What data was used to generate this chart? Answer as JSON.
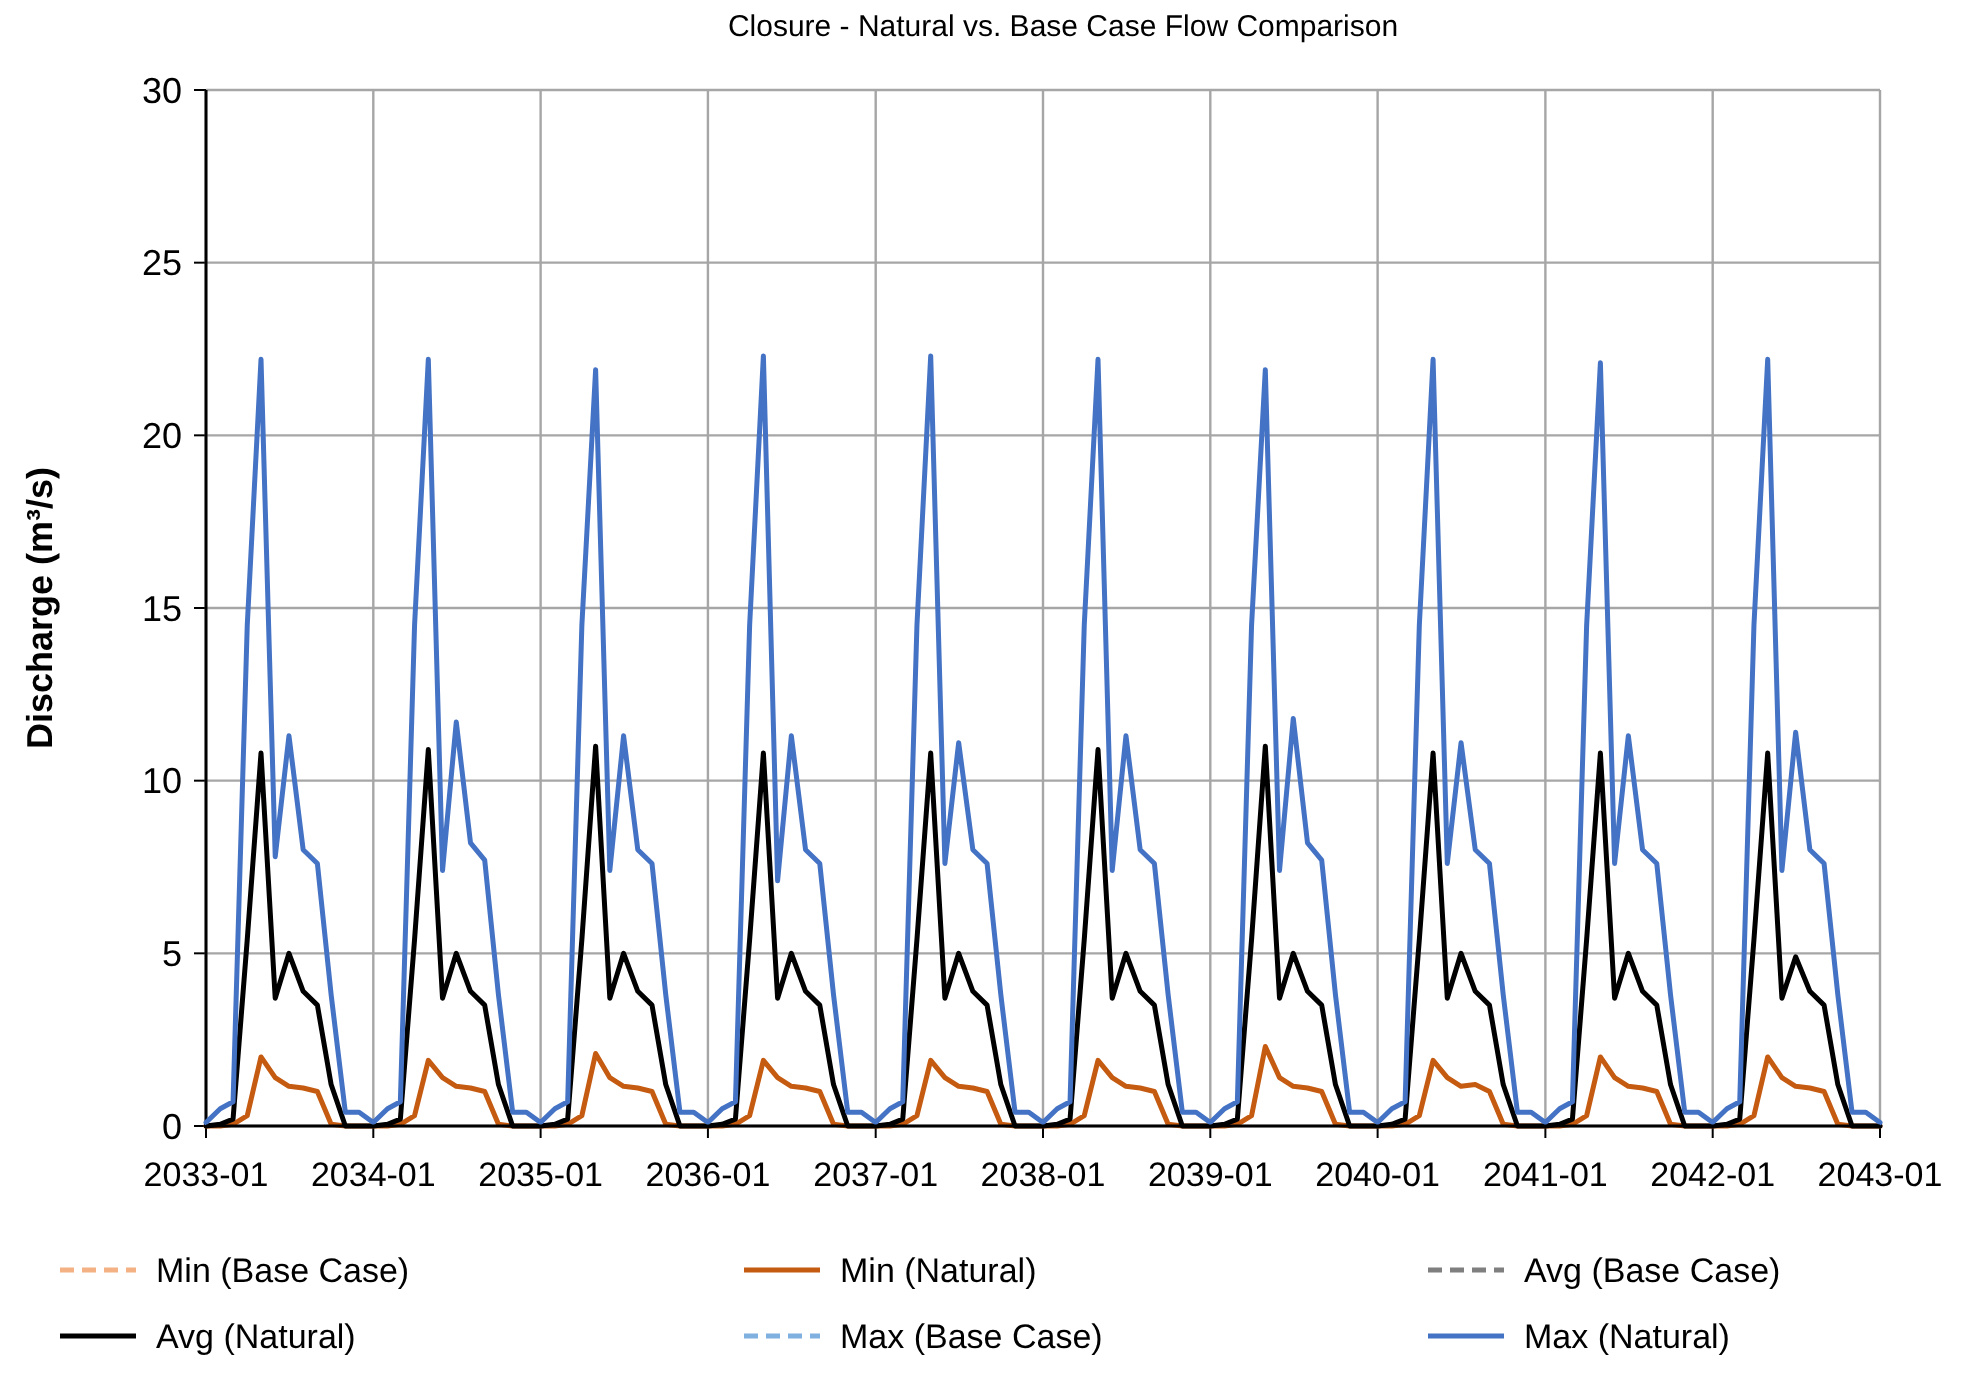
{
  "chart_data": {
    "type": "line",
    "title": "Closure - Natural vs. Base Case Flow Comparison",
    "ylabel": "Discharge (m³/s)",
    "x": [
      "2033-01",
      "2033-02",
      "2033-03",
      "2033-04",
      "2033-05",
      "2033-06",
      "2033-07",
      "2033-08",
      "2033-09",
      "2033-10",
      "2033-11",
      "2033-12",
      "2034-01",
      "2034-02",
      "2034-03",
      "2034-04",
      "2034-05",
      "2034-06",
      "2034-07",
      "2034-08",
      "2034-09",
      "2034-10",
      "2034-11",
      "2034-12",
      "2035-01",
      "2035-02",
      "2035-03",
      "2035-04",
      "2035-05",
      "2035-06",
      "2035-07",
      "2035-08",
      "2035-09",
      "2035-10",
      "2035-11",
      "2035-12",
      "2036-01",
      "2036-02",
      "2036-03",
      "2036-04",
      "2036-05",
      "2036-06",
      "2036-07",
      "2036-08",
      "2036-09",
      "2036-10",
      "2036-11",
      "2036-12",
      "2037-01",
      "2037-02",
      "2037-03",
      "2037-04",
      "2037-05",
      "2037-06",
      "2037-07",
      "2037-08",
      "2037-09",
      "2037-10",
      "2037-11",
      "2037-12",
      "2038-01",
      "2038-02",
      "2038-03",
      "2038-04",
      "2038-05",
      "2038-06",
      "2038-07",
      "2038-08",
      "2038-09",
      "2038-10",
      "2038-11",
      "2038-12",
      "2039-01",
      "2039-02",
      "2039-03",
      "2039-04",
      "2039-05",
      "2039-06",
      "2039-07",
      "2039-08",
      "2039-09",
      "2039-10",
      "2039-11",
      "2039-12",
      "2040-01",
      "2040-02",
      "2040-03",
      "2040-04",
      "2040-05",
      "2040-06",
      "2040-07",
      "2040-08",
      "2040-09",
      "2040-10",
      "2040-11",
      "2040-12",
      "2041-01",
      "2041-02",
      "2041-03",
      "2041-04",
      "2041-05",
      "2041-06",
      "2041-07",
      "2041-08",
      "2041-09",
      "2041-10",
      "2041-11",
      "2041-12",
      "2042-01",
      "2042-02",
      "2042-03",
      "2042-04",
      "2042-05",
      "2042-06",
      "2042-07",
      "2042-08",
      "2042-09",
      "2042-10",
      "2042-11",
      "2042-12",
      "2043-01"
    ],
    "xlim": [
      "2033-01",
      "2043-01"
    ],
    "xticks": [
      "2033-01",
      "2034-01",
      "2035-01",
      "2036-01",
      "2037-01",
      "2038-01",
      "2039-01",
      "2040-01",
      "2041-01",
      "2042-01",
      "2043-01"
    ],
    "ylim": [
      0,
      30
    ],
    "yticks": [
      0,
      5,
      10,
      15,
      20,
      25,
      30
    ],
    "grid": true,
    "legend": "bottom",
    "marker": "none",
    "series": [
      {
        "name": "Min (Base Case)",
        "color": "#f4b183",
        "line_style": "dashed",
        "values": [
          null,
          null,
          null,
          null,
          null,
          null,
          null,
          null,
          null,
          null,
          null,
          null,
          null,
          null,
          null,
          null,
          null,
          null,
          null,
          null,
          null,
          null,
          null,
          null,
          null,
          null,
          null,
          null,
          null,
          null,
          null,
          null,
          null,
          null,
          null,
          null,
          null,
          null,
          null,
          null,
          null,
          null,
          null,
          null,
          null,
          null,
          null,
          null,
          null,
          null,
          null,
          null,
          null,
          null,
          null,
          null,
          null,
          null,
          null,
          null,
          null,
          null,
          null,
          null,
          null,
          null,
          null,
          null,
          null,
          null,
          null,
          null,
          null,
          null,
          null,
          null,
          null,
          null,
          null,
          null,
          null,
          null,
          null,
          null,
          null,
          null,
          null,
          null,
          null,
          null,
          null,
          null,
          null,
          null,
          null,
          null,
          null,
          null,
          null,
          null,
          null,
          null,
          null,
          null,
          null,
          null,
          null,
          null,
          null,
          null,
          null,
          null,
          null,
          null,
          null,
          null,
          null,
          null,
          null,
          null,
          null
        ]
      },
      {
        "name": "Min (Natural)",
        "color": "#c55a11",
        "line_style": "solid",
        "values": [
          0,
          0,
          0.05,
          0.3,
          2.0,
          1.4,
          1.15,
          1.1,
          1.0,
          0.05,
          0,
          0,
          0,
          0,
          0.05,
          0.3,
          1.9,
          1.4,
          1.15,
          1.1,
          1.0,
          0.05,
          0,
          0,
          0,
          0,
          0.05,
          0.3,
          2.1,
          1.4,
          1.15,
          1.1,
          1.0,
          0.05,
          0,
          0,
          0,
          0,
          0.05,
          0.3,
          1.9,
          1.4,
          1.15,
          1.1,
          1.0,
          0.05,
          0,
          0,
          0,
          0,
          0.05,
          0.3,
          1.9,
          1.4,
          1.15,
          1.1,
          1.0,
          0.05,
          0,
          0,
          0,
          0,
          0.05,
          0.3,
          1.9,
          1.4,
          1.15,
          1.1,
          1.0,
          0.05,
          0,
          0,
          0,
          0,
          0.05,
          0.3,
          2.3,
          1.4,
          1.15,
          1.1,
          1.0,
          0.05,
          0,
          0,
          0,
          0,
          0.05,
          0.3,
          1.9,
          1.4,
          1.15,
          1.2,
          1.0,
          0.05,
          0,
          0,
          0,
          0,
          0.05,
          0.3,
          2.0,
          1.4,
          1.15,
          1.1,
          1.0,
          0.05,
          0,
          0,
          0,
          0,
          0.05,
          0.3,
          2.0,
          1.4,
          1.15,
          1.1,
          1.0,
          0.05,
          0,
          0,
          0
        ]
      },
      {
        "name": "Avg (Base Case)",
        "color": "#7f7f7f",
        "line_style": "dashed",
        "values": [
          null,
          null,
          null,
          null,
          null,
          null,
          null,
          null,
          null,
          null,
          null,
          null,
          null,
          null,
          null,
          null,
          null,
          null,
          null,
          null,
          null,
          null,
          null,
          null,
          null,
          null,
          null,
          null,
          null,
          null,
          null,
          null,
          null,
          null,
          null,
          null,
          null,
          null,
          null,
          null,
          null,
          null,
          null,
          null,
          null,
          null,
          null,
          null,
          null,
          null,
          null,
          null,
          null,
          null,
          null,
          null,
          null,
          null,
          null,
          null,
          null,
          null,
          null,
          null,
          null,
          null,
          null,
          null,
          null,
          null,
          null,
          null,
          null,
          null,
          null,
          null,
          null,
          null,
          null,
          null,
          null,
          null,
          null,
          null,
          null,
          null,
          null,
          null,
          null,
          null,
          null,
          null,
          null,
          null,
          null,
          null,
          null,
          null,
          null,
          null,
          null,
          null,
          null,
          null,
          null,
          null,
          null,
          null,
          null,
          null,
          null,
          null,
          null,
          null,
          null,
          null,
          null,
          null,
          null,
          null,
          null
        ]
      },
      {
        "name": "Avg (Natural)",
        "color": "#000000",
        "line_style": "solid",
        "values": [
          0,
          0.05,
          0.2,
          5.4,
          10.8,
          3.7,
          5.0,
          3.9,
          3.5,
          1.2,
          0,
          0,
          0,
          0.05,
          0.2,
          5.4,
          10.9,
          3.7,
          5.0,
          3.9,
          3.5,
          1.2,
          0,
          0,
          0,
          0.05,
          0.2,
          5.4,
          11.0,
          3.7,
          5.0,
          3.9,
          3.5,
          1.2,
          0,
          0,
          0,
          0.05,
          0.2,
          5.4,
          10.8,
          3.7,
          5.0,
          3.9,
          3.5,
          1.2,
          0,
          0,
          0,
          0.05,
          0.2,
          5.4,
          10.8,
          3.7,
          5.0,
          3.9,
          3.5,
          1.2,
          0,
          0,
          0,
          0.05,
          0.2,
          5.4,
          10.9,
          3.7,
          5.0,
          3.9,
          3.5,
          1.2,
          0,
          0,
          0,
          0.05,
          0.2,
          5.4,
          11.0,
          3.7,
          5.0,
          3.9,
          3.5,
          1.2,
          0,
          0,
          0,
          0.05,
          0.2,
          5.4,
          10.8,
          3.7,
          5.0,
          3.9,
          3.5,
          1.2,
          0,
          0,
          0,
          0.05,
          0.2,
          5.4,
          10.8,
          3.7,
          5.0,
          3.9,
          3.5,
          1.2,
          0,
          0,
          0,
          0.05,
          0.2,
          5.4,
          10.8,
          3.7,
          4.9,
          3.9,
          3.5,
          1.2,
          0,
          0,
          0
        ]
      },
      {
        "name": "Max (Base Case)",
        "color": "#7fb0e0",
        "line_style": "dashed",
        "values": [
          null,
          null,
          null,
          null,
          null,
          null,
          null,
          null,
          null,
          null,
          null,
          null,
          null,
          null,
          null,
          null,
          null,
          null,
          null,
          null,
          null,
          null,
          null,
          null,
          null,
          null,
          null,
          null,
          null,
          null,
          null,
          null,
          null,
          null,
          null,
          null,
          null,
          null,
          null,
          null,
          null,
          null,
          null,
          null,
          null,
          null,
          null,
          null,
          null,
          null,
          null,
          null,
          null,
          null,
          null,
          null,
          null,
          null,
          null,
          null,
          null,
          null,
          null,
          null,
          null,
          null,
          null,
          null,
          null,
          null,
          null,
          null,
          null,
          null,
          null,
          null,
          null,
          null,
          null,
          null,
          null,
          null,
          null,
          null,
          null,
          null,
          null,
          null,
          null,
          null,
          null,
          null,
          null,
          null,
          null,
          null,
          null,
          null,
          null,
          null,
          null,
          null,
          null,
          null,
          null,
          null,
          null,
          null,
          null,
          null,
          null,
          null,
          null,
          null,
          null,
          null,
          null,
          null,
          null,
          null,
          null
        ]
      },
      {
        "name": "Max (Natural)",
        "color": "#4472c4",
        "line_style": "solid",
        "values": [
          0.1,
          0.5,
          0.7,
          14.5,
          22.2,
          7.8,
          11.3,
          8.0,
          7.6,
          3.8,
          0.4,
          0.4,
          0.1,
          0.5,
          0.7,
          14.5,
          22.2,
          7.4,
          11.7,
          8.2,
          7.7,
          3.8,
          0.4,
          0.4,
          0.1,
          0.5,
          0.7,
          14.5,
          21.9,
          7.4,
          11.3,
          8.0,
          7.6,
          3.8,
          0.4,
          0.4,
          0.1,
          0.5,
          0.7,
          14.5,
          22.3,
          7.1,
          11.3,
          8.0,
          7.6,
          3.8,
          0.4,
          0.4,
          0.1,
          0.5,
          0.7,
          14.5,
          22.3,
          7.6,
          11.1,
          8.0,
          7.6,
          3.8,
          0.4,
          0.4,
          0.1,
          0.5,
          0.7,
          14.5,
          22.2,
          7.4,
          11.3,
          8.0,
          7.6,
          3.8,
          0.4,
          0.4,
          0.1,
          0.5,
          0.7,
          14.5,
          21.9,
          7.4,
          11.8,
          8.2,
          7.7,
          3.8,
          0.4,
          0.4,
          0.1,
          0.5,
          0.7,
          14.5,
          22.2,
          7.6,
          11.1,
          8.0,
          7.6,
          3.8,
          0.4,
          0.4,
          0.1,
          0.5,
          0.7,
          14.5,
          22.1,
          7.6,
          11.3,
          8.0,
          7.6,
          3.8,
          0.4,
          0.4,
          0.1,
          0.5,
          0.7,
          14.5,
          22.2,
          7.4,
          11.4,
          8.0,
          7.6,
          3.8,
          0.4,
          0.4,
          0.1
        ]
      }
    ]
  }
}
